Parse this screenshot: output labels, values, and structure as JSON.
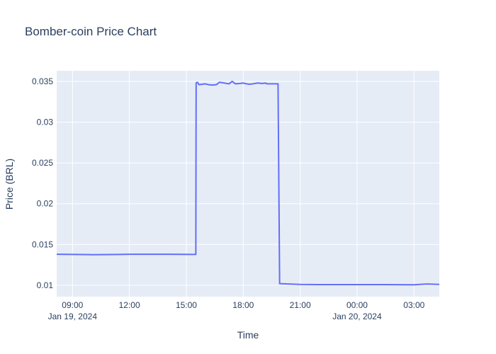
{
  "chart_data": {
    "type": "line",
    "title": "Bomber-coin Price Chart",
    "xlabel": "Time",
    "ylabel": "Price (BRL)",
    "xlim": [
      "2024-01-19 08:10",
      "2024-01-20 04:20"
    ],
    "ylim": [
      0.0086,
      0.0363
    ],
    "x_ticks": [
      {
        "t": "2024-01-19 09:00",
        "label": "09:00",
        "sublabel": "Jan 19, 2024"
      },
      {
        "t": "2024-01-19 12:00",
        "label": "12:00",
        "sublabel": ""
      },
      {
        "t": "2024-01-19 15:00",
        "label": "15:00",
        "sublabel": ""
      },
      {
        "t": "2024-01-19 18:00",
        "label": "18:00",
        "sublabel": ""
      },
      {
        "t": "2024-01-19 21:00",
        "label": "21:00",
        "sublabel": ""
      },
      {
        "t": "2024-01-20 00:00",
        "label": "00:00",
        "sublabel": "Jan 20, 2024"
      },
      {
        "t": "2024-01-20 03:00",
        "label": "03:00",
        "sublabel": ""
      }
    ],
    "y_ticks": [
      {
        "v": 0.01,
        "label": "0.01"
      },
      {
        "v": 0.015,
        "label": "0.015"
      },
      {
        "v": 0.02,
        "label": "0.02"
      },
      {
        "v": 0.025,
        "label": "0.025"
      },
      {
        "v": 0.03,
        "label": "0.03"
      },
      {
        "v": 0.035,
        "label": "0.035"
      }
    ],
    "grid": true,
    "series": [
      {
        "color": "#636efa",
        "points": [
          [
            "2024-01-19 08:10",
            0.0138
          ],
          [
            "2024-01-19 10:00",
            0.01375
          ],
          [
            "2024-01-19 11:30",
            0.01378
          ],
          [
            "2024-01-19 12:00",
            0.0138
          ],
          [
            "2024-01-19 14:00",
            0.0138
          ],
          [
            "2024-01-19 15:30",
            0.01378
          ],
          [
            "2024-01-19 15:31",
            0.0348
          ],
          [
            "2024-01-19 15:35",
            0.0349
          ],
          [
            "2024-01-19 15:40",
            0.0346
          ],
          [
            "2024-01-19 15:50",
            0.03465
          ],
          [
            "2024-01-19 16:00",
            0.0347
          ],
          [
            "2024-01-19 16:10",
            0.0346
          ],
          [
            "2024-01-19 16:20",
            0.03455
          ],
          [
            "2024-01-19 16:35",
            0.0346
          ],
          [
            "2024-01-19 16:45",
            0.0349
          ],
          [
            "2024-01-19 17:00",
            0.0348
          ],
          [
            "2024-01-19 17:15",
            0.0347
          ],
          [
            "2024-01-19 17:25",
            0.035
          ],
          [
            "2024-01-19 17:35",
            0.0347
          ],
          [
            "2024-01-19 17:50",
            0.03475
          ],
          [
            "2024-01-19 18:00",
            0.0348
          ],
          [
            "2024-01-19 18:10",
            0.0347
          ],
          [
            "2024-01-19 18:20",
            0.03465
          ],
          [
            "2024-01-19 18:30",
            0.0347
          ],
          [
            "2024-01-19 18:45",
            0.0348
          ],
          [
            "2024-01-19 19:00",
            0.03475
          ],
          [
            "2024-01-19 19:10",
            0.0348
          ],
          [
            "2024-01-19 19:15",
            0.0347
          ],
          [
            "2024-01-19 19:30",
            0.0347
          ],
          [
            "2024-01-19 19:50",
            0.0347
          ],
          [
            "2024-01-19 19:55",
            0.0102
          ],
          [
            "2024-01-19 21:00",
            0.0101
          ],
          [
            "2024-01-19 22:00",
            0.01008
          ],
          [
            "2024-01-19 23:00",
            0.01008
          ],
          [
            "2024-01-20 00:00",
            0.01008
          ],
          [
            "2024-01-20 01:30",
            0.01008
          ],
          [
            "2024-01-20 03:00",
            0.01005
          ],
          [
            "2024-01-20 03:40",
            0.01015
          ],
          [
            "2024-01-20 04:20",
            0.0101
          ]
        ]
      }
    ]
  }
}
